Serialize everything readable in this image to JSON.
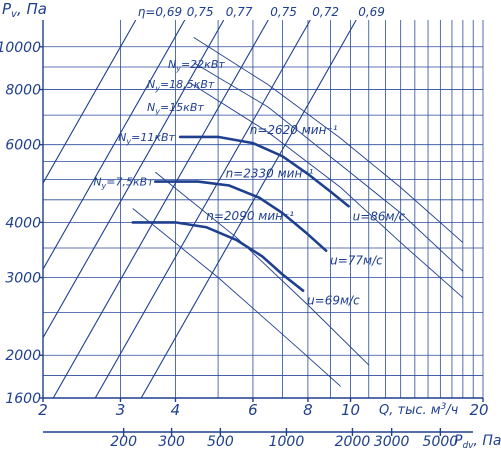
{
  "chart_data": {
    "type": "line",
    "title": "",
    "ylabel": "P",
    "ylabel_sub": "v",
    "ylabel_unit": ", Па",
    "xlabel": "Q, тыс. м",
    "xlabel_sup": "3",
    "xlabel_unit": "/ч",
    "pdv_label": "P",
    "pdv_sub": "dv",
    "pdv_unit": ", Па",
    "x_scale": "log",
    "y_scale": "log",
    "xlim": [
      2,
      20
    ],
    "ylim": [
      1600,
      11500
    ],
    "grid": true,
    "x_ticks": [
      "2",
      "3",
      "4",
      "6",
      "8",
      "10",
      "20"
    ],
    "x_minor_ticks": [
      5,
      7,
      9,
      11,
      12,
      13,
      14,
      15,
      16,
      17,
      18,
      19
    ],
    "y_ticks": [
      "1600",
      "2000",
      "3000",
      "4000",
      "6000",
      "8000",
      "10000"
    ],
    "y_minor_ticks": [
      1800,
      2500,
      3500,
      4500,
      5000,
      5500,
      7000,
      9000
    ],
    "pdv_ticks": [
      "200",
      "300",
      "500",
      "1000",
      "2000",
      "3000",
      "5000"
    ],
    "pdv_tick_q": [
      3.05,
      3.92,
      5.06,
      7.15,
      10.1,
      12.4,
      16.0
    ],
    "eta_labels": [
      "η=0,69",
      "0,75",
      "0,77",
      "0,75",
      "0,72",
      "0,69"
    ],
    "eta_top_q": [
      3.25,
      4.2,
      5.15,
      6.5,
      8.1,
      10.3
    ],
    "speed_lines": [
      "u=86м/с",
      "u=77м/с",
      "u=69м/с"
    ],
    "series": [
      {
        "name": "n=2620 мин⁻¹",
        "power_label": "N",
        "power_sub": "у",
        "power_value": "=11кВт",
        "points": [
          [
            4.1,
            6250
          ],
          [
            5.0,
            6250
          ],
          [
            6.0,
            6050
          ],
          [
            7.0,
            5650
          ],
          [
            8.0,
            5150
          ],
          [
            9.0,
            4700
          ],
          [
            9.9,
            4350
          ]
        ],
        "label_q": 5.9,
        "label_p": 6350
      },
      {
        "name": "n=2330 мин⁻¹",
        "power_label": "N",
        "power_sub": "у",
        "power_value": "=7,5кВт",
        "points": [
          [
            3.6,
            4950
          ],
          [
            4.5,
            4950
          ],
          [
            5.3,
            4850
          ],
          [
            6.2,
            4550
          ],
          [
            7.0,
            4200
          ],
          [
            7.9,
            3800
          ],
          [
            8.8,
            3450
          ]
        ],
        "label_q": 5.2,
        "label_p": 5050
      },
      {
        "name": "n=2090 мин⁻¹",
        "power_label": "",
        "power_sub": "",
        "power_value": "",
        "points": [
          [
            3.2,
            4000
          ],
          [
            4.0,
            4000
          ],
          [
            4.7,
            3900
          ],
          [
            5.5,
            3650
          ],
          [
            6.3,
            3350
          ],
          [
            7.0,
            3050
          ],
          [
            7.8,
            2800
          ]
        ],
        "label_q": 4.7,
        "label_p": 4050
      }
    ],
    "power_labels_extra": [
      {
        "label": "N",
        "sub": "у",
        "value": "=22кВт"
      },
      {
        "label": "N",
        "sub": "у",
        "value": "=18,5кВт"
      },
      {
        "label": "N",
        "sub": "у",
        "value": "=15кВт"
      }
    ]
  }
}
